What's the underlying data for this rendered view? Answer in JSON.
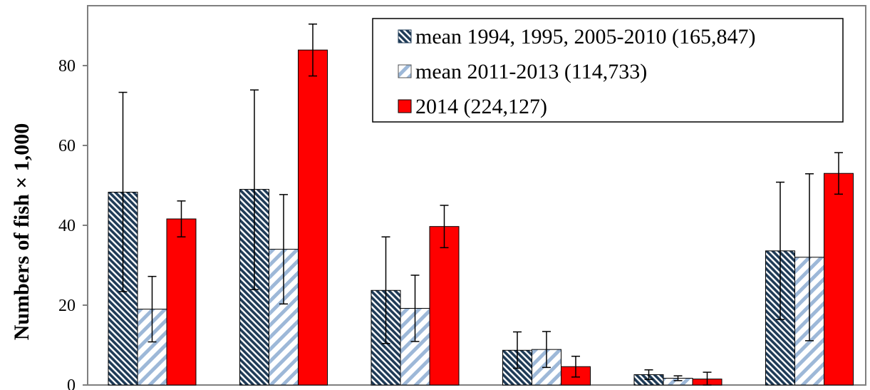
{
  "chart_data": {
    "type": "bar",
    "title": "",
    "xlabel": "",
    "ylabel": "Numbers of fish × 1,000",
    "ylim": [
      0,
      95
    ],
    "yticks": [
      0,
      20,
      40,
      60,
      80
    ],
    "grid": false,
    "legend_position": "top-right",
    "categories": [
      "",
      "",
      "",
      "",
      "",
      ""
    ],
    "series": [
      {
        "name": "mean 1994, 1995, 2005-2010 (165,847)",
        "pattern": "dense-diagonal-navy",
        "color": "#1f3b57",
        "values": [
          48.3,
          49.0,
          23.7,
          8.7,
          2.6,
          33.6
        ],
        "error_low": [
          23.4,
          23.9,
          10.4,
          4.2,
          1.4,
          16.4
        ],
        "error_high": [
          73.3,
          73.9,
          37.1,
          13.3,
          3.8,
          50.8
        ]
      },
      {
        "name": "mean 2011-2013 (114,733)",
        "pattern": "light-diagonal-blue",
        "color": "#9db8d8",
        "values": [
          19.0,
          34.0,
          19.2,
          8.9,
          1.7,
          32.0
        ],
        "error_low": [
          10.8,
          20.3,
          10.9,
          4.4,
          1.1,
          11.1
        ],
        "error_high": [
          27.2,
          47.7,
          27.5,
          13.4,
          2.3,
          52.9
        ]
      },
      {
        "name": "2014 (224,127)",
        "pattern": "solid",
        "color": "#ff0000",
        "values": [
          41.6,
          83.9,
          39.7,
          4.6,
          1.5,
          53.0
        ],
        "error_low": [
          37.1,
          77.4,
          34.4,
          2.0,
          0.0,
          47.8
        ],
        "error_high": [
          46.1,
          90.4,
          45.0,
          7.2,
          3.2,
          58.2
        ]
      }
    ]
  }
}
